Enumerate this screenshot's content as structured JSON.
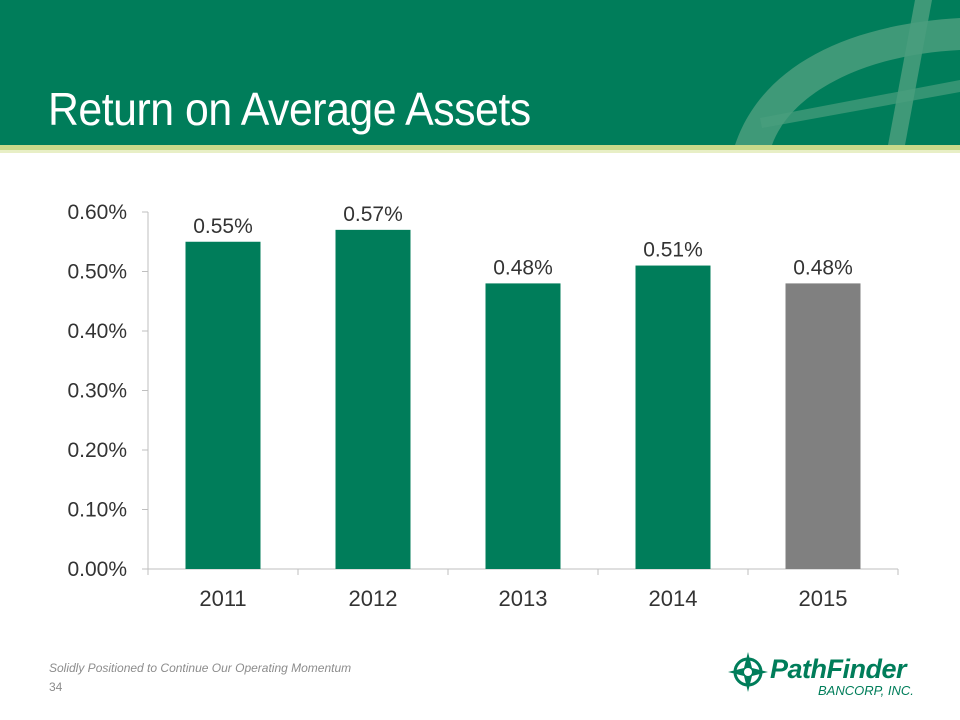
{
  "slide": {
    "title": "Return on Average Assets",
    "tagline": "Solidly Positioned to Continue Our Operating Momentum",
    "page_number": "34"
  },
  "logo": {
    "name": "PathFinder",
    "sub": "BANCORP, INC.",
    "icon": "compass-star-icon"
  },
  "colors": {
    "brand_green": "#007d5a",
    "highlight_gray": "#808080",
    "accent_lime": "#c9d98a"
  },
  "chart_data": {
    "type": "bar",
    "categories": [
      "2011",
      "2012",
      "2013",
      "2014",
      "2015"
    ],
    "values": [
      0.55,
      0.57,
      0.48,
      0.51,
      0.48
    ],
    "data_labels": [
      "0.55%",
      "0.57%",
      "0.48%",
      "0.51%",
      "0.48%"
    ],
    "bar_colors": [
      "#007d5a",
      "#007d5a",
      "#007d5a",
      "#007d5a",
      "#808080"
    ],
    "ylim": [
      0,
      0.6
    ],
    "yticks": [
      0,
      0.1,
      0.2,
      0.3,
      0.4,
      0.5,
      0.6
    ],
    "ytick_labels": [
      "0.00%",
      "0.10%",
      "0.20%",
      "0.30%",
      "0.40%",
      "0.50%",
      "0.60%"
    ],
    "grid": false,
    "legend": "none"
  }
}
